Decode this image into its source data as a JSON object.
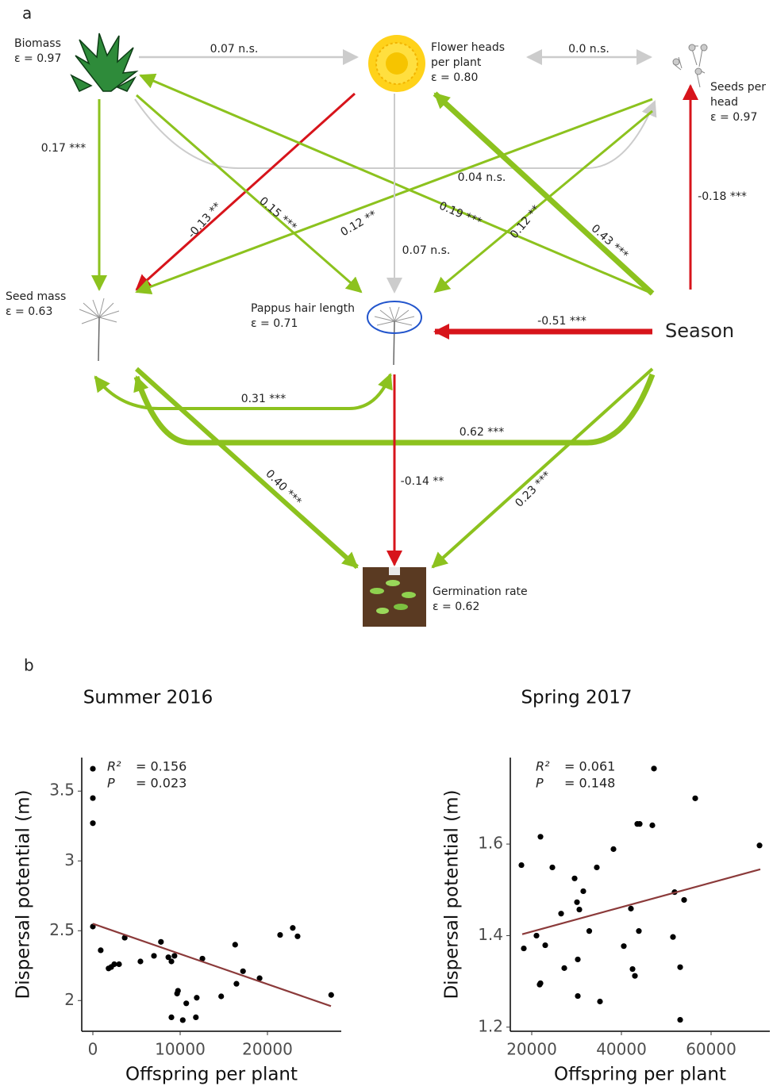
{
  "panel_labels": [
    "a",
    "b"
  ],
  "diagram": {
    "nodes": [
      {
        "name": [
          "Biomass"
        ],
        "error": "ε = 0.97"
      },
      {
        "name": [
          "Flower heads",
          "per plant"
        ],
        "error": "ε = 0.80"
      },
      {
        "name": [
          "Seeds per",
          "head"
        ],
        "error": "ε = 0.97"
      },
      {
        "name": [
          "Seed mass"
        ],
        "error": "ε = 0.63"
      },
      {
        "name": [
          "Pappus hair length"
        ],
        "error": "ε = 0.71"
      },
      {
        "name": [
          "Season"
        ]
      },
      {
        "name": [
          "Germination rate"
        ],
        "error": "ε = 0.62"
      }
    ],
    "edges": [
      {
        "label": "0.07 n.s.",
        "color": "#cccccc"
      },
      {
        "label": "0.0 n.s.",
        "color": "#cccccc"
      },
      {
        "label": "0.17 ***",
        "color": "#8cc21e"
      },
      {
        "label": "0.04 n.s.",
        "color": "#cccccc"
      },
      {
        "label": "-0.13 **",
        "color": "#d7141b"
      },
      {
        "label": "0.15 ***",
        "color": "#8cc21e"
      },
      {
        "label": "0.12 **",
        "color": "#8cc21e"
      },
      {
        "label": "0.19 ***",
        "color": "#8cc21e"
      },
      {
        "label": "0.12 **",
        "color": "#8cc21e"
      },
      {
        "label": "0.43 ***",
        "color": "#8cc21e"
      },
      {
        "label": "0.07 n.s.",
        "color": "#cccccc"
      },
      {
        "label": "-0.18 ***",
        "color": "#d7141b"
      },
      {
        "label": "-0.51 ***",
        "color": "#d7141b"
      },
      {
        "label": "0.31 ***",
        "color": "#8cc21e"
      },
      {
        "label": "0.62 ***",
        "color": "#8cc21e"
      },
      {
        "label": "0.40 ***",
        "color": "#8cc21e"
      },
      {
        "label": "-0.14 **",
        "color": "#d7141b"
      },
      {
        "label": "0.23 ***",
        "color": "#8cc21e"
      }
    ]
  },
  "chart_data": [
    {
      "type": "scatter",
      "title": "Summer 2016",
      "x_label": "Offspring per plant",
      "y_label": "Dispersal potential (m)",
      "x": [
        0,
        0,
        0,
        0,
        900,
        1800,
        2100,
        2450,
        3000,
        3650,
        5450,
        7000,
        7800,
        8650,
        9000,
        9350,
        9000,
        9650,
        9750,
        10300,
        10700,
        11900,
        11800,
        12550,
        14700,
        16300,
        16450,
        17200,
        19100,
        21450,
        22900,
        23450,
        27300
      ],
      "y": [
        3.66,
        3.45,
        3.27,
        2.53,
        2.36,
        2.23,
        2.24,
        2.26,
        2.26,
        2.45,
        2.28,
        2.32,
        2.42,
        2.31,
        2.28,
        2.32,
        1.88,
        2.05,
        2.07,
        1.86,
        1.98,
        2.02,
        1.88,
        2.3,
        2.03,
        2.4,
        2.12,
        2.21,
        2.16,
        2.47,
        2.52,
        2.46,
        2.04
      ],
      "color": "#000000",
      "xlim": [
        -1273,
        28455
      ],
      "ylim": [
        1.78,
        3.74
      ],
      "xticks": [
        0,
        10000,
        20000
      ],
      "yticks": [
        2.0,
        2.5,
        3.0,
        3.5
      ],
      "annotations": [
        {
          "label": "R²",
          "value": "= 0.156"
        },
        {
          "label": "P",
          "value": "= 0.023"
        }
      ],
      "trend_line": {
        "x": [
          0,
          27273
        ],
        "y": [
          2.55,
          1.96
        ],
        "color": "#8b3a3a"
      }
    },
    {
      "type": "scatter",
      "title": "Spring 2017",
      "x_label": "Offspring per plant",
      "y_label": "Dispersal potential (m)",
      "x": [
        17700,
        18230,
        21950,
        21060,
        21950,
        21770,
        23010,
        24600,
        26550,
        27260,
        29560,
        30090,
        30270,
        30270,
        30620,
        31500,
        32830,
        34510,
        35220,
        38230,
        40530,
        42120,
        42480,
        43010,
        43540,
        44070,
        43890,
        46900,
        47260,
        51500,
        51860,
        53100,
        53980,
        53100,
        56460,
        70800
      ],
      "y": [
        1.554,
        1.372,
        1.616,
        1.4,
        1.296,
        1.293,
        1.379,
        1.549,
        1.448,
        1.329,
        1.525,
        1.473,
        1.268,
        1.348,
        1.457,
        1.497,
        1.41,
        1.549,
        1.256,
        1.589,
        1.377,
        1.459,
        1.327,
        1.312,
        1.644,
        1.644,
        1.41,
        1.641,
        1.765,
        1.397,
        1.495,
        1.331,
        1.478,
        1.216,
        1.7,
        1.597
      ],
      "color": "#000000",
      "xlim": [
        15221,
        73097
      ],
      "ylim": [
        1.191,
        1.789
      ],
      "xticks": [
        20000,
        40000,
        60000
      ],
      "yticks": [
        1.2,
        1.4,
        1.6
      ],
      "annotations": [
        {
          "label": "R²",
          "value": "= 0.061"
        },
        {
          "label": "P",
          "value": "= 0.148"
        }
      ],
      "trend_line": {
        "x": [
          17876,
          70973
        ],
        "y": [
          1.403,
          1.545
        ],
        "color": "#8b3a3a"
      }
    }
  ]
}
